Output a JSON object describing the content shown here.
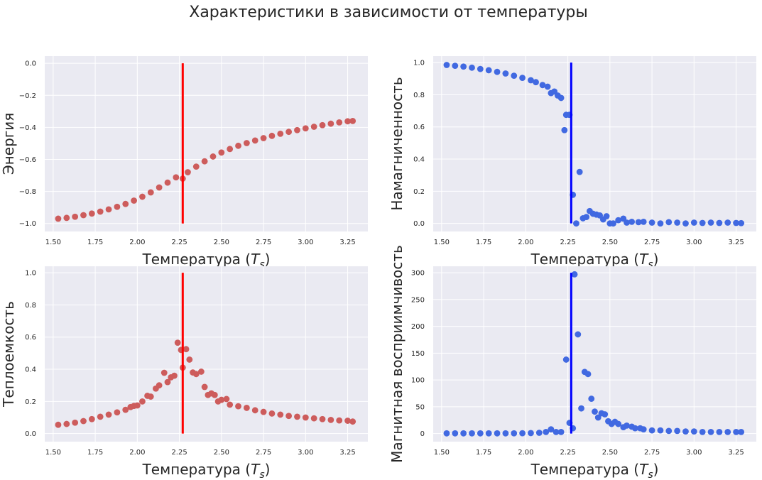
{
  "figure": {
    "title": "Характеристики в зависимости от температуры",
    "background": "#ffffff",
    "axes_background": "#eaeaf2",
    "grid_color": "#ffffff"
  },
  "chart_data": [
    {
      "type": "scatter",
      "xlabel": "Температура (T_s)",
      "ylabel": "Энергия",
      "xlim": [
        1.45,
        3.37
      ],
      "ylim": [
        -1.05,
        0.045
      ],
      "xticks": [
        "1.50",
        "1.75",
        "2.00",
        "2.25",
        "2.50",
        "2.75",
        "3.00",
        "3.25"
      ],
      "yticks": [
        "0.0",
        "−0.2",
        "−0.4",
        "−0.6",
        "−0.8",
        "−1.0"
      ],
      "color": "#cd5c5c",
      "grid": true,
      "vline": {
        "x": 2.27,
        "ymin": -1.0,
        "ymax": 0.0,
        "color": "#ff0000"
      },
      "x": [
        1.53,
        1.58,
        1.63,
        1.68,
        1.73,
        1.78,
        1.83,
        1.88,
        1.93,
        1.98,
        2.03,
        2.08,
        2.13,
        2.18,
        2.23,
        2.27,
        2.3,
        2.35,
        2.4,
        2.45,
        2.5,
        2.55,
        2.6,
        2.65,
        2.7,
        2.75,
        2.8,
        2.85,
        2.9,
        2.95,
        3.0,
        3.05,
        3.1,
        3.15,
        3.2,
        3.25,
        3.28
      ],
      "y": [
        -0.97,
        -0.965,
        -0.958,
        -0.948,
        -0.938,
        -0.926,
        -0.912,
        -0.896,
        -0.878,
        -0.857,
        -0.833,
        -0.806,
        -0.775,
        -0.745,
        -0.712,
        -0.72,
        -0.68,
        -0.645,
        -0.612,
        -0.582,
        -0.557,
        -0.535,
        -0.515,
        -0.498,
        -0.482,
        -0.467,
        -0.453,
        -0.44,
        -0.428,
        -0.417,
        -0.406,
        -0.396,
        -0.386,
        -0.377,
        -0.369,
        -0.362,
        -0.36
      ]
    },
    {
      "type": "scatter",
      "xlabel": "Температура (T_s)",
      "ylabel": "Намагниченность",
      "xlim": [
        1.45,
        3.37
      ],
      "ylim": [
        -0.05,
        1.04
      ],
      "xticks": [
        "1.50",
        "1.75",
        "2.00",
        "2.25",
        "2.50",
        "2.75",
        "3.00",
        "3.25"
      ],
      "yticks": [
        "1.0",
        "0.8",
        "0.6",
        "0.4",
        "0.2",
        "0.0"
      ],
      "color": "#4169e1",
      "grid": true,
      "vline": {
        "x": 2.27,
        "ymin": 0.0,
        "ymax": 1.0,
        "color": "#0000ff"
      },
      "x": [
        1.53,
        1.58,
        1.63,
        1.68,
        1.73,
        1.78,
        1.83,
        1.88,
        1.93,
        1.98,
        2.03,
        2.06,
        2.1,
        2.13,
        2.15,
        2.17,
        2.19,
        2.21,
        2.23,
        2.24,
        2.26,
        2.28,
        2.3,
        2.32,
        2.34,
        2.36,
        2.38,
        2.4,
        2.42,
        2.44,
        2.46,
        2.48,
        2.5,
        2.52,
        2.55,
        2.58,
        2.6,
        2.63,
        2.67,
        2.7,
        2.75,
        2.8,
        2.85,
        2.9,
        2.95,
        3.0,
        3.05,
        3.1,
        3.15,
        3.2,
        3.25,
        3.28
      ],
      "y": [
        0.985,
        0.98,
        0.975,
        0.968,
        0.96,
        0.952,
        0.942,
        0.932,
        0.918,
        0.905,
        0.89,
        0.878,
        0.86,
        0.85,
        0.81,
        0.82,
        0.795,
        0.78,
        0.58,
        0.675,
        0.675,
        0.178,
        0.0,
        0.32,
        0.032,
        0.04,
        0.077,
        0.06,
        0.055,
        0.05,
        0.025,
        0.045,
        0.0,
        0.0,
        0.02,
        0.03,
        0.005,
        0.01,
        0.008,
        0.01,
        0.005,
        0.0,
        0.008,
        0.005,
        0.0,
        0.005,
        0.003,
        0.005,
        0.003,
        0.005,
        0.003,
        0.002
      ]
    },
    {
      "type": "scatter",
      "xlabel": "Температура (T_s)",
      "ylabel": "Теплоемкость",
      "xlim": [
        1.45,
        3.37
      ],
      "ylim": [
        -0.05,
        1.04
      ],
      "xticks": [
        "1.50",
        "1.75",
        "2.00",
        "2.25",
        "2.50",
        "2.75",
        "3.00",
        "3.25"
      ],
      "yticks": [
        "1.0",
        "0.8",
        "0.6",
        "0.4",
        "0.2",
        "0.0"
      ],
      "color": "#cd5c5c",
      "grid": true,
      "vline": {
        "x": 2.27,
        "ymin": 0.0,
        "ymax": 1.0,
        "color": "#ff0000"
      },
      "x": [
        1.53,
        1.58,
        1.63,
        1.68,
        1.73,
        1.78,
        1.83,
        1.88,
        1.93,
        1.96,
        1.98,
        2.0,
        2.03,
        2.06,
        2.08,
        2.11,
        2.13,
        2.16,
        2.18,
        2.2,
        2.22,
        2.24,
        2.26,
        2.27,
        2.29,
        2.31,
        2.33,
        2.35,
        2.38,
        2.4,
        2.42,
        2.44,
        2.46,
        2.48,
        2.5,
        2.53,
        2.55,
        2.6,
        2.65,
        2.7,
        2.75,
        2.8,
        2.85,
        2.9,
        2.95,
        3.0,
        3.05,
        3.1,
        3.15,
        3.2,
        3.25,
        3.28
      ],
      "y": [
        0.055,
        0.06,
        0.068,
        0.078,
        0.09,
        0.105,
        0.118,
        0.132,
        0.148,
        0.165,
        0.172,
        0.175,
        0.2,
        0.235,
        0.23,
        0.28,
        0.3,
        0.378,
        0.32,
        0.35,
        0.36,
        0.565,
        0.52,
        0.41,
        0.525,
        0.46,
        0.38,
        0.37,
        0.385,
        0.29,
        0.24,
        0.25,
        0.24,
        0.2,
        0.21,
        0.215,
        0.18,
        0.17,
        0.16,
        0.145,
        0.135,
        0.125,
        0.118,
        0.11,
        0.105,
        0.1,
        0.095,
        0.09,
        0.085,
        0.082,
        0.08,
        0.075
      ]
    },
    {
      "type": "scatter",
      "xlabel": "Температура (T_s)",
      "ylabel": "Магнитная восприимчивость",
      "xlim": [
        1.45,
        3.37
      ],
      "ylim": [
        -15,
        312
      ],
      "xticks": [
        "1.50",
        "1.75",
        "2.00",
        "2.25",
        "2.50",
        "2.75",
        "3.00",
        "3.25"
      ],
      "yticks": [
        "300",
        "250",
        "200",
        "150",
        "100",
        "50",
        "0"
      ],
      "color": "#4169e1",
      "grid": true,
      "vline": {
        "x": 2.27,
        "ymin": 0,
        "ymax": 300,
        "color": "#0000ff"
      },
      "x": [
        1.53,
        1.58,
        1.63,
        1.68,
        1.73,
        1.78,
        1.83,
        1.88,
        1.93,
        1.98,
        2.03,
        2.08,
        2.12,
        2.15,
        2.18,
        2.21,
        2.24,
        2.26,
        2.28,
        2.29,
        2.31,
        2.33,
        2.35,
        2.37,
        2.39,
        2.41,
        2.43,
        2.45,
        2.47,
        2.49,
        2.51,
        2.53,
        2.55,
        2.58,
        2.6,
        2.63,
        2.65,
        2.68,
        2.7,
        2.75,
        2.8,
        2.85,
        2.9,
        2.95,
        3.0,
        3.05,
        3.1,
        3.15,
        3.2,
        3.25,
        3.28
      ],
      "y": [
        0.5,
        0.5,
        0.5,
        0.5,
        0.5,
        0.5,
        0.5,
        0.5,
        0.6,
        0.7,
        1.0,
        1.5,
        3.0,
        8.0,
        3.0,
        3.0,
        138,
        20,
        10,
        297,
        185,
        47,
        115,
        111,
        65,
        41,
        30,
        38,
        36,
        23,
        18,
        22,
        18,
        12,
        15,
        13,
        10,
        10,
        8,
        6,
        6,
        5,
        5,
        4,
        4,
        3,
        3,
        3,
        3,
        3,
        3
      ]
    }
  ]
}
